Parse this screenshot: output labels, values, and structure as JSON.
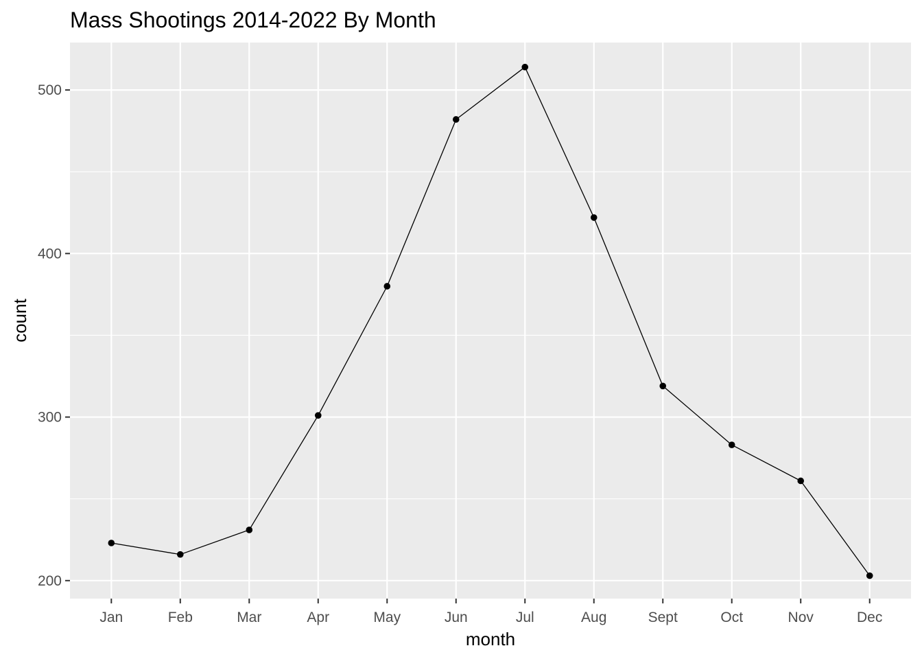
{
  "chart_data": {
    "type": "line",
    "title": "Mass Shootings 2014-2022 By Month",
    "xlabel": "month",
    "ylabel": "count",
    "categories": [
      "Jan",
      "Feb",
      "Mar",
      "Apr",
      "May",
      "Jun",
      "Jul",
      "Aug",
      "Sept",
      "Oct",
      "Nov",
      "Dec"
    ],
    "series": [
      {
        "values": [
          223,
          216,
          231,
          301,
          380,
          482,
          514,
          422,
          319,
          283,
          261,
          203
        ],
        "color": "#000000"
      }
    ],
    "ylim": [
      189,
      529
    ],
    "y_ticks": [
      200,
      300,
      400,
      500
    ],
    "y_minor_ticks": [
      250,
      350,
      450
    ],
    "grid": true,
    "legend": "none",
    "panel_background": "#ebebeb",
    "grid_color": "#ffffff"
  }
}
